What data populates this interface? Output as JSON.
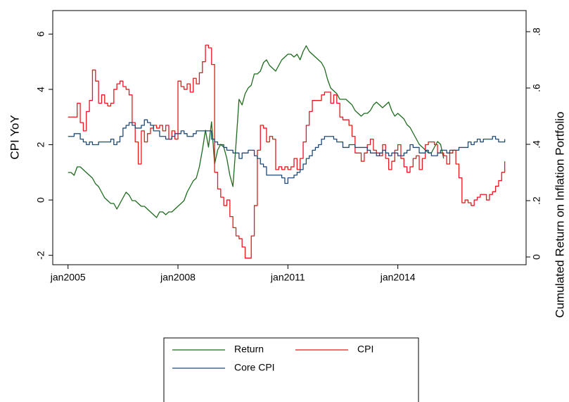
{
  "chart_data": {
    "type": "line",
    "ylabel": "CPI YoY",
    "y2label": "Cumulated Return on Inflation Portfolio",
    "x": [
      "2005-01",
      "2005-02",
      "2005-03",
      "2005-04",
      "2005-05",
      "2005-06",
      "2005-07",
      "2005-08",
      "2005-09",
      "2005-10",
      "2005-11",
      "2005-12",
      "2006-01",
      "2006-02",
      "2006-03",
      "2006-04",
      "2006-05",
      "2006-06",
      "2006-07",
      "2006-08",
      "2006-09",
      "2006-10",
      "2006-11",
      "2006-12",
      "2007-01",
      "2007-02",
      "2007-03",
      "2007-04",
      "2007-05",
      "2007-06",
      "2007-07",
      "2007-08",
      "2007-09",
      "2007-10",
      "2007-11",
      "2007-12",
      "2008-01",
      "2008-02",
      "2008-03",
      "2008-04",
      "2008-05",
      "2008-06",
      "2008-07",
      "2008-08",
      "2008-09",
      "2008-10",
      "2008-11",
      "2008-12",
      "2009-01",
      "2009-02",
      "2009-03",
      "2009-04",
      "2009-05",
      "2009-06",
      "2009-07",
      "2009-08",
      "2009-09",
      "2009-10",
      "2009-11",
      "2009-12",
      "2010-01",
      "2010-02",
      "2010-03",
      "2010-04",
      "2010-05",
      "2010-06",
      "2010-07",
      "2010-08",
      "2010-09",
      "2010-10",
      "2010-11",
      "2010-12",
      "2011-01",
      "2011-02",
      "2011-03",
      "2011-04",
      "2011-05",
      "2011-06",
      "2011-07",
      "2011-08",
      "2011-09",
      "2011-10",
      "2011-11",
      "2011-12",
      "2012-01",
      "2012-02",
      "2012-03",
      "2012-04",
      "2012-05",
      "2012-06",
      "2012-07",
      "2012-08",
      "2012-09",
      "2012-10",
      "2012-11",
      "2012-12",
      "2013-01",
      "2013-02",
      "2013-03",
      "2013-04",
      "2013-05",
      "2013-06",
      "2013-07",
      "2013-08",
      "2013-09",
      "2013-10",
      "2013-11",
      "2013-12",
      "2014-01",
      "2014-02",
      "2014-03",
      "2014-04",
      "2014-05",
      "2014-06",
      "2014-07",
      "2014-08",
      "2014-09",
      "2014-10",
      "2014-11",
      "2014-12",
      "2015-01",
      "2015-02",
      "2015-03",
      "2015-04",
      "2015-05",
      "2015-06",
      "2015-07",
      "2015-08",
      "2015-09",
      "2015-10",
      "2015-11",
      "2015-12",
      "2016-01",
      "2016-02",
      "2016-03",
      "2016-04",
      "2016-05",
      "2016-06",
      "2016-07",
      "2016-08",
      "2016-09",
      "2016-10",
      "2016-11",
      "2016-12"
    ],
    "series": [
      {
        "name": "Return",
        "color": "#1d6b1d",
        "axis": "y2",
        "step": false,
        "values": [
          0.3,
          0.3,
          0.29,
          0.32,
          0.32,
          0.31,
          0.3,
          0.29,
          0.28,
          0.26,
          0.25,
          0.23,
          0.21,
          0.2,
          0.19,
          0.19,
          0.17,
          0.19,
          0.21,
          0.23,
          0.22,
          0.2,
          0.2,
          0.19,
          0.18,
          0.18,
          0.17,
          0.16,
          0.15,
          0.14,
          0.16,
          0.16,
          0.15,
          0.16,
          0.16,
          0.17,
          0.18,
          0.19,
          0.2,
          0.23,
          0.25,
          0.27,
          0.28,
          0.32,
          0.38,
          0.45,
          0.39,
          0.48,
          0.33,
          0.38,
          0.4,
          0.39,
          0.35,
          0.29,
          0.25,
          0.4,
          0.56,
          0.54,
          0.58,
          0.6,
          0.61,
          0.65,
          0.65,
          0.66,
          0.69,
          0.7,
          0.68,
          0.67,
          0.66,
          0.68,
          0.7,
          0.71,
          0.72,
          0.72,
          0.71,
          0.72,
          0.7,
          0.73,
          0.75,
          0.73,
          0.72,
          0.71,
          0.7,
          0.69,
          0.67,
          0.63,
          0.6,
          0.59,
          0.58,
          0.56,
          0.56,
          0.56,
          0.55,
          0.54,
          0.52,
          0.51,
          0.5,
          0.51,
          0.51,
          0.52,
          0.54,
          0.55,
          0.54,
          0.53,
          0.54,
          0.55,
          0.52,
          0.5,
          0.51,
          0.5,
          0.49,
          0.47,
          0.46,
          0.44,
          0.42,
          0.4,
          0.39,
          0.38,
          0.37,
          0.37,
          0.39,
          0.41,
          0.4,
          0.35,
          null,
          null,
          null,
          null,
          null,
          null,
          null,
          null,
          null,
          null,
          null,
          null,
          null,
          null,
          null,
          null,
          null,
          null,
          null,
          null
        ]
      },
      {
        "name": "CPI",
        "color": "#e8161d",
        "step": true,
        "values": [
          3.0,
          3.0,
          3.0,
          3.5,
          2.8,
          2.5,
          3.2,
          3.6,
          4.7,
          4.3,
          3.5,
          3.8,
          3.5,
          3.4,
          3.5,
          4.0,
          4.2,
          4.3,
          4.1,
          4.0,
          3.8,
          2.8,
          2.1,
          1.3,
          2.5,
          2.1,
          2.4,
          2.6,
          2.7,
          2.6,
          2.7,
          2.5,
          2.7,
          2.2,
          2.5,
          2.2,
          4.3,
          4.1,
          4.0,
          4.2,
          3.9,
          4.4,
          4.2,
          4.6,
          5.0,
          5.6,
          5.5,
          4.9,
          1.0,
          0.4,
          0.1,
          -0.2,
          0.0,
          -0.6,
          -1.0,
          -1.3,
          -1.4,
          -1.7,
          -2.1,
          -2.1,
          -1.3,
          -0.2,
          1.8,
          2.7,
          2.6,
          2.1,
          2.3,
          2.2,
          1.1,
          1.2,
          1.1,
          1.2,
          1.1,
          1.2,
          1.5,
          1.1,
          1.5,
          2.1,
          2.7,
          3.2,
          3.6,
          3.6,
          3.6,
          3.8,
          3.9,
          3.9,
          3.5,
          3.8,
          3.5,
          3.0,
          2.9,
          2.9,
          2.7,
          2.3,
          1.7,
          1.7,
          1.4,
          1.7,
          2.0,
          2.2,
          1.8,
          1.7,
          1.6,
          2.0,
          1.5,
          1.1,
          1.4,
          1.8,
          2.0,
          1.5,
          1.2,
          1.0,
          1.2,
          1.5,
          1.6,
          1.1,
          1.5,
          2.0,
          2.1,
          2.1,
          2.0,
          1.7,
          1.7,
          1.6,
          1.3,
          1.7,
          1.8,
          1.3,
          0.8,
          -0.1,
          0.0,
          -0.1,
          -0.2,
          0.0,
          0.1,
          0.2,
          0.2,
          0.0,
          0.2,
          0.3,
          0.5,
          0.7,
          1.0,
          1.4
        ]
      },
      {
        "name": "Core CPI",
        "color": "#1f4a78",
        "step": true,
        "values": [
          2.3,
          2.3,
          2.4,
          2.4,
          2.2,
          2.1,
          2.0,
          2.1,
          2.0,
          2.0,
          2.1,
          2.1,
          2.1,
          2.1,
          2.2,
          2.0,
          2.1,
          2.3,
          2.6,
          2.7,
          2.8,
          2.7,
          2.6,
          2.6,
          2.7,
          2.9,
          2.8,
          2.7,
          2.5,
          2.5,
          2.3,
          2.3,
          2.2,
          2.2,
          2.3,
          2.4,
          2.4,
          2.5,
          2.4,
          2.3,
          2.3,
          2.4,
          2.5,
          2.5,
          2.5,
          2.5,
          2.5,
          2.2,
          2.1,
          2.0,
          2.0,
          1.9,
          1.8,
          1.8,
          1.7,
          1.7,
          1.5,
          1.7,
          1.7,
          1.8,
          1.8,
          1.6,
          1.5,
          1.3,
          1.2,
          0.9,
          0.9,
          0.9,
          0.9,
          0.9,
          0.8,
          0.6,
          0.8,
          0.8,
          0.9,
          1.0,
          1.1,
          1.3,
          1.5,
          1.6,
          1.8,
          1.9,
          2.0,
          2.2,
          2.3,
          2.3,
          2.3,
          2.2,
          2.1,
          2.1,
          1.9,
          1.9,
          2.0,
          2.0,
          1.9,
          1.9,
          1.9,
          1.9,
          1.8,
          1.7,
          1.7,
          1.6,
          1.7,
          1.8,
          1.7,
          1.6,
          1.7,
          1.7,
          1.6,
          1.6,
          1.7,
          1.8,
          2.0,
          1.9,
          1.9,
          1.7,
          1.7,
          1.8,
          1.7,
          1.6,
          1.6,
          1.7,
          1.8,
          1.8,
          1.7,
          1.8,
          1.8,
          1.8,
          1.9,
          1.9,
          1.9,
          2.1,
          2.0,
          2.1,
          2.2,
          2.1,
          2.2,
          2.2,
          2.2,
          2.3,
          2.2,
          2.1,
          2.1,
          2.2
        ]
      }
    ],
    "xlim": [
      "2004-08",
      "2017-07"
    ],
    "xticks": [
      {
        "value": "2005-01",
        "label": "jan2005"
      },
      {
        "value": "2008-01",
        "label": "jan2008"
      },
      {
        "value": "2011-01",
        "label": "jan2011"
      },
      {
        "value": "2014-01",
        "label": "jan2014"
      }
    ],
    "ylim": [
      -2.34,
      6.85
    ],
    "yticks": [
      -2,
      0,
      2,
      4,
      6
    ],
    "y2lim": [
      -0.0275,
      0.875
    ],
    "y2ticks": [
      0,
      {
        "value": 0.2,
        "label": ".2"
      },
      {
        "value": 0.4,
        "label": ".4"
      },
      {
        "value": 0.6,
        "label": ".6"
      },
      {
        "value": 0.8,
        "label": ".8"
      }
    ],
    "grid": false,
    "legend": "bottom"
  }
}
